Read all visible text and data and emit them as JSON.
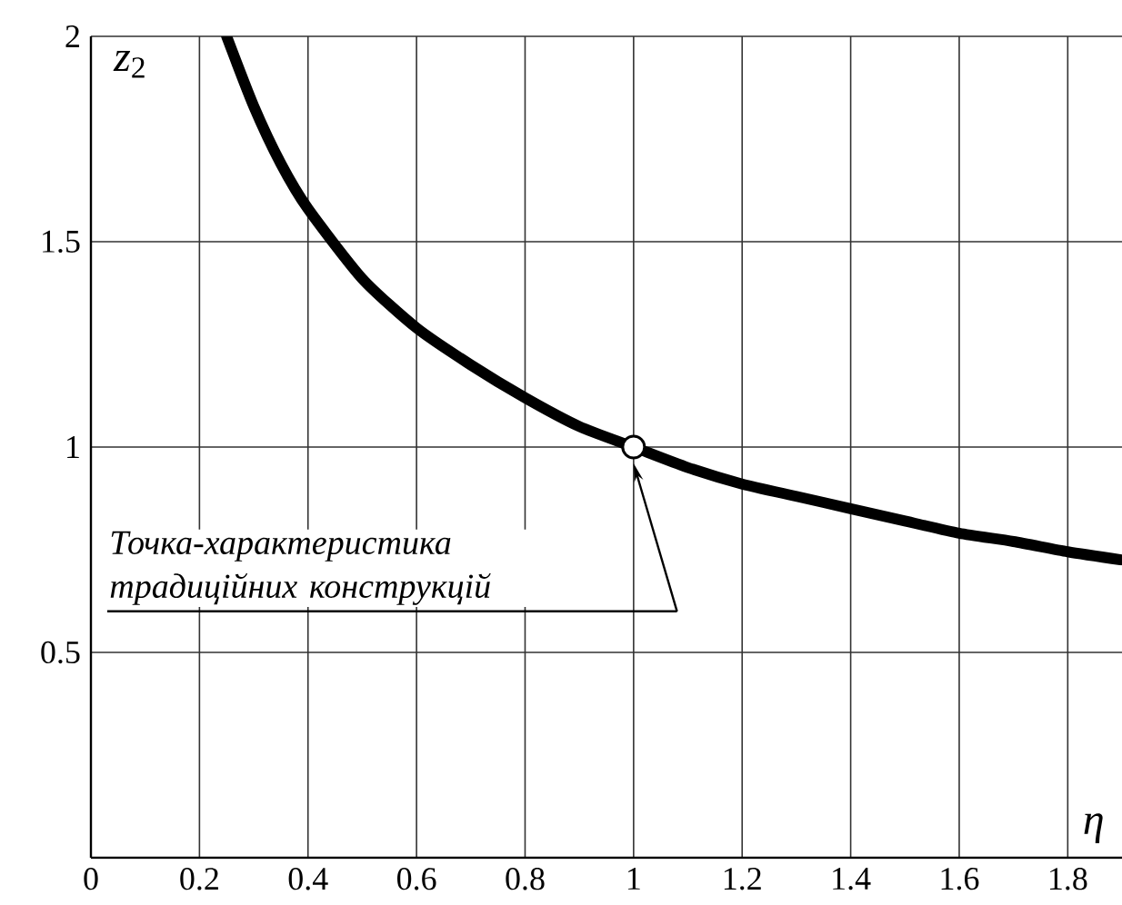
{
  "chart_data": {
    "type": "line",
    "xlabel": "η",
    "ylabel": "*z*$_{2}$",
    "xlim": [
      0,
      1.9
    ],
    "ylim": [
      0,
      2
    ],
    "xticks": [
      0,
      0.2,
      0.4,
      0.6,
      0.8,
      1,
      1.2,
      1.4,
      1.6,
      1.8
    ],
    "yticks": [
      0.5,
      1,
      1.5,
      2
    ],
    "grid": true,
    "series": [
      {
        "color": "#000000",
        "x": [
          0.25,
          0.3,
          0.35,
          0.4,
          0.5,
          0.6,
          0.7,
          0.8,
          0.9,
          1.0,
          1.1,
          1.2,
          1.3,
          1.4,
          1.5,
          1.6,
          1.7,
          1.8,
          1.9
        ],
        "values": [
          2.0,
          1.83,
          1.69,
          1.58,
          1.41,
          1.29,
          1.2,
          1.12,
          1.05,
          1.0,
          0.95,
          0.91,
          0.88,
          0.85,
          0.82,
          0.79,
          0.77,
          0.745,
          0.725
        ]
      },
      {
        "type": "scatter",
        "marker": "circle",
        "color": "#ffffff",
        "x": [
          1
        ],
        "values": [
          1
        ]
      }
    ],
    "annotations": [
      "Точка-характеристика традиційних конструкцій"
    ]
  }
}
